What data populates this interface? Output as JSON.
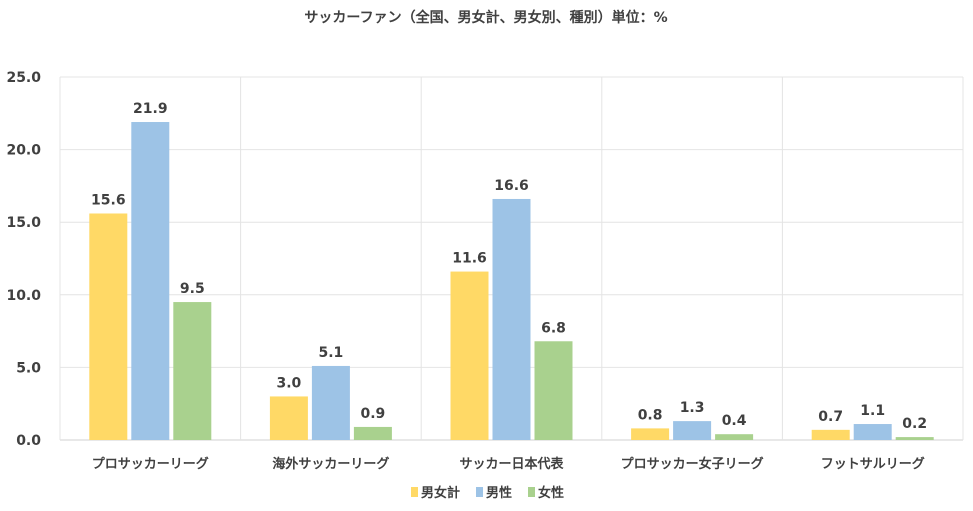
{
  "chart_data": {
    "type": "bar",
    "title": "サッカーファン（全国、男女計、男女別、種別）単位：%",
    "categories": [
      "プロサッカーリーグ",
      "海外サッカーリーグ",
      "サッカー日本代表",
      "プロサッカー女子リーグ",
      "フットサルリーグ"
    ],
    "series": [
      {
        "name": "男女計",
        "color": "#FFD966",
        "values": [
          15.6,
          3.0,
          11.6,
          0.8,
          0.7
        ],
        "labels": [
          "15.6",
          "3.0",
          "11.6",
          "0.8",
          "0.7"
        ]
      },
      {
        "name": "男性",
        "color": "#9DC3E6",
        "values": [
          21.9,
          5.1,
          16.6,
          1.3,
          1.1
        ],
        "labels": [
          "21.9",
          "5.1",
          "16.6",
          "1.3",
          "1.1"
        ]
      },
      {
        "name": "女性",
        "color": "#A9D18E",
        "values": [
          9.5,
          0.9,
          6.8,
          0.4,
          0.2
        ],
        "labels": [
          "9.5",
          "0.9",
          "6.8",
          "0.4",
          "0.2"
        ]
      }
    ],
    "ylim": [
      0,
      25
    ],
    "yticks": [
      "0.0",
      "5.0",
      "10.0",
      "15.0",
      "20.0",
      "25.0"
    ],
    "grid": true,
    "legend_position": "bottom"
  }
}
